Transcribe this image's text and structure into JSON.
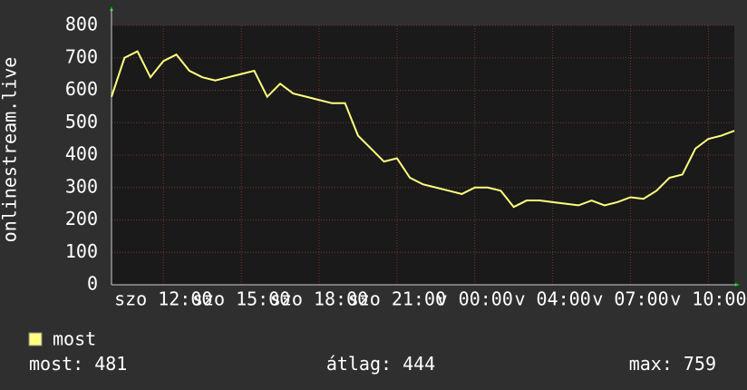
{
  "chart_data": {
    "type": "line",
    "y_label": "onlinestream.live",
    "x": [
      10,
      10.5,
      11,
      11.5,
      12,
      12.5,
      13,
      13.5,
      14,
      14.5,
      15,
      15.5,
      16,
      16.5,
      17,
      17.5,
      18,
      18.5,
      19,
      19.5,
      20,
      20.5,
      21,
      21.5,
      22,
      22.5,
      23,
      23.5,
      24,
      24.5,
      25,
      25.5,
      26,
      26.5,
      27,
      27.5,
      28,
      28.5,
      29,
      29.5,
      30,
      30.5,
      31,
      31.5,
      32,
      32.5,
      33,
      33.5,
      34
    ],
    "series": [
      {
        "name": "most",
        "color": "#ffff80",
        "values": [
          580,
          700,
          720,
          640,
          690,
          710,
          660,
          640,
          630,
          640,
          650,
          660,
          580,
          620,
          590,
          580,
          570,
          560,
          560,
          460,
          420,
          380,
          390,
          330,
          310,
          300,
          290,
          280,
          300,
          300,
          290,
          240,
          260,
          260,
          255,
          250,
          245,
          260,
          245,
          255,
          270,
          265,
          290,
          330,
          340,
          420,
          450,
          460,
          475
        ]
      }
    ],
    "xlim": [
      10,
      34
    ],
    "xticks": [
      {
        "value": 12,
        "label": "szo 12:00"
      },
      {
        "value": 15,
        "label": "szo 15:00"
      },
      {
        "value": 18,
        "label": "szo 18:00"
      },
      {
        "value": 21,
        "label": "szo 21:00"
      },
      {
        "value": 24,
        "label": "v 00:00"
      },
      {
        "value": 27,
        "label": "v 04:00"
      },
      {
        "value": 30,
        "label": "v 07:00"
      },
      {
        "value": 33,
        "label": "v 10:00"
      }
    ],
    "ylim": [
      0,
      800
    ],
    "yticks": [
      0,
      100,
      200,
      300,
      400,
      500,
      600,
      700,
      800
    ],
    "grid": true,
    "stats": [
      {
        "label": "most:",
        "value": 481
      },
      {
        "label": "átlag:",
        "value": 444
      },
      {
        "label": "max:",
        "value": 759
      }
    ]
  }
}
